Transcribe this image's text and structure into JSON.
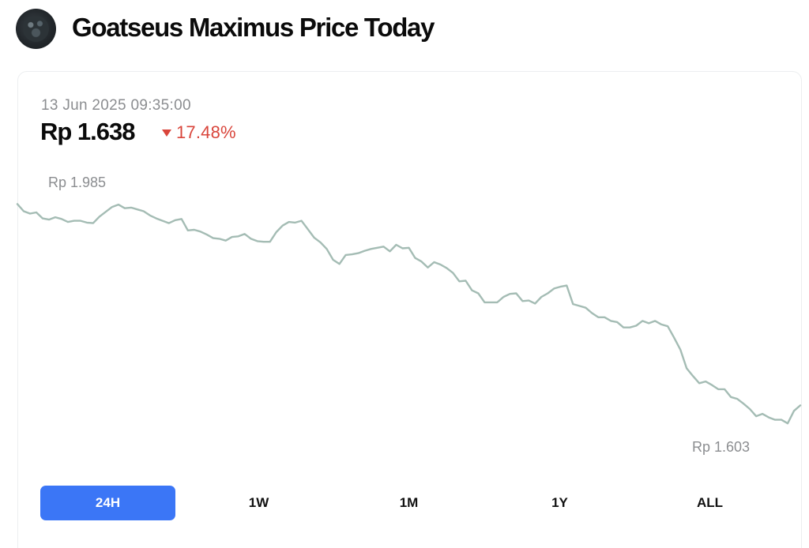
{
  "header": {
    "title": "Goatseus Maximus Price Today",
    "logo_icon": "goatseus-maximus-logo-icon"
  },
  "price_panel": {
    "timestamp": "13 Jun 2025 09:35:00",
    "price": "Rp 1.638",
    "change": "17.48%",
    "change_direction": "down",
    "change_color": "#d9453b"
  },
  "chart_data": {
    "type": "line",
    "line_color": "#a4bcb4",
    "grid": false,
    "max_label": "Rp 1.985",
    "min_label": "Rp 1.603",
    "x_range": [
      "-24h",
      "now"
    ],
    "ylim": [
      1603,
      1985
    ],
    "series": [
      {
        "values": [
          1974,
          1962,
          1958,
          1960,
          1950,
          1948,
          1952,
          1949,
          1944,
          1946,
          1946,
          1943,
          1942,
          1953,
          1961,
          1969,
          1973,
          1967,
          1968,
          1965,
          1962,
          1955,
          1950,
          1946,
          1942,
          1947,
          1949,
          1930,
          1931,
          1928,
          1923,
          1917,
          1916,
          1913,
          1919,
          1920,
          1924,
          1916,
          1912,
          1911,
          1911,
          1927,
          1938,
          1944,
          1943,
          1946,
          1932,
          1918,
          1910,
          1899,
          1881,
          1874,
          1889,
          1890,
          1892,
          1896,
          1899,
          1901,
          1903,
          1895,
          1906,
          1900,
          1901,
          1884,
          1878,
          1868,
          1877,
          1873,
          1867,
          1859,
          1845,
          1846,
          1830,
          1825,
          1810,
          1810,
          1810,
          1819,
          1824,
          1825,
          1812,
          1813,
          1808,
          1819,
          1825,
          1833,
          1836,
          1838,
          1807,
          1804,
          1801,
          1792,
          1785,
          1785,
          1779,
          1777,
          1768,
          1768,
          1771,
          1779,
          1775,
          1779,
          1773,
          1770,
          1751,
          1731,
          1700,
          1687,
          1675,
          1678,
          1672,
          1665,
          1665,
          1652,
          1649,
          1641,
          1632,
          1620,
          1624,
          1618,
          1614,
          1614,
          1608,
          1629,
          1638
        ]
      }
    ]
  },
  "time_ranges": {
    "selected": "24H",
    "options": [
      "24H",
      "1W",
      "1M",
      "1Y",
      "ALL"
    ]
  }
}
